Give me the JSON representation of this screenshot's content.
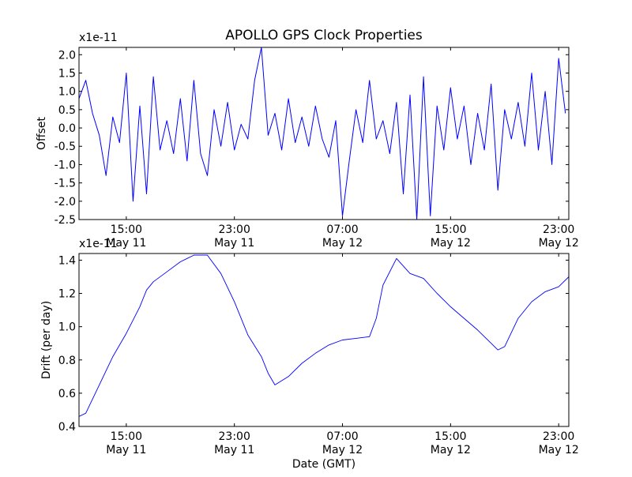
{
  "figure": {
    "title": "APOLLO GPS Clock Properties"
  },
  "chart_data": [
    {
      "type": "line",
      "ylabel": "Offset",
      "y_multiplier": "x1e-11",
      "ylim": [
        -2.5,
        2.2
      ],
      "yticks": [
        "2.0",
        "1.5",
        "1.0",
        "0.5",
        "0.0",
        "-0.5",
        "-1.0",
        "-1.5",
        "-2.0",
        "-2.5"
      ],
      "x_range": [
        "May 11 11:30",
        "May 12 23:45"
      ],
      "xticks": [
        {
          "time": "15:00",
          "date": "May 11"
        },
        {
          "time": "23:00",
          "date": "May 11"
        },
        {
          "time": "07:00",
          "date": "May 12"
        },
        {
          "time": "15:00",
          "date": "May 12"
        },
        {
          "time": "23:00",
          "date": "May 12"
        }
      ],
      "color": "#0000ff",
      "series": [
        {
          "x": [
            "May 11 11:30",
            "May 11 12:00",
            "May 11 12:30",
            "May 11 13:00",
            "May 11 13:30",
            "May 11 14:00",
            "May 11 14:30",
            "May 11 15:00",
            "May 11 15:30",
            "May 11 16:00",
            "May 11 16:30",
            "May 11 17:00",
            "May 11 17:30",
            "May 11 18:00",
            "May 11 18:30",
            "May 11 19:00",
            "May 11 19:30",
            "May 11 20:00",
            "May 11 20:30",
            "May 11 21:00",
            "May 11 21:30",
            "May 11 22:00",
            "May 11 22:30",
            "May 11 23:00",
            "May 11 23:30",
            "May 12 00:00",
            "May 12 00:30",
            "May 12 01:00",
            "May 12 01:30",
            "May 12 02:00",
            "May 12 02:30",
            "May 12 03:00",
            "May 12 03:30",
            "May 12 04:00",
            "May 12 04:30",
            "May 12 05:00",
            "May 12 05:30",
            "May 12 06:00",
            "May 12 06:30",
            "May 12 07:00",
            "May 12 07:30",
            "May 12 08:00",
            "May 12 08:30",
            "May 12 09:00",
            "May 12 09:30",
            "May 12 10:00",
            "May 12 10:30",
            "May 12 11:00",
            "May 12 11:30",
            "May 12 12:00",
            "May 12 12:30",
            "May 12 13:00",
            "May 12 13:30",
            "May 12 14:00",
            "May 12 14:30",
            "May 12 15:00",
            "May 12 15:30",
            "May 12 16:00",
            "May 12 16:30",
            "May 12 17:00",
            "May 12 17:30",
            "May 12 18:00",
            "May 12 18:30",
            "May 12 19:00",
            "May 12 19:30",
            "May 12 20:00",
            "May 12 20:30",
            "May 12 21:00",
            "May 12 21:30",
            "May 12 22:00",
            "May 12 22:30",
            "May 12 23:00",
            "May 12 23:30"
          ],
          "values": [
            0.8,
            1.3,
            0.4,
            -0.2,
            -1.3,
            0.3,
            -0.4,
            1.5,
            -2.0,
            0.6,
            -1.8,
            1.4,
            -0.6,
            0.2,
            -0.7,
            0.8,
            -0.9,
            1.3,
            -0.7,
            -1.3,
            0.5,
            -0.5,
            0.7,
            -0.6,
            0.1,
            -0.3,
            1.3,
            2.2,
            -0.2,
            0.4,
            -0.6,
            0.8,
            -0.4,
            0.3,
            -0.5,
            0.6,
            -0.3,
            -0.8,
            0.2,
            -2.4,
            -0.9,
            0.5,
            -0.4,
            1.3,
            -0.3,
            0.2,
            -0.7,
            0.7,
            -1.8,
            0.9,
            -2.5,
            1.4,
            -2.4,
            0.6,
            -0.6,
            1.1,
            -0.3,
            0.6,
            -1.0,
            0.4,
            -0.6,
            1.2,
            -1.7,
            0.5,
            -0.3,
            0.7,
            -0.5,
            1.5,
            -0.6,
            1.0,
            -1.0,
            1.9,
            0.4
          ]
        }
      ]
    },
    {
      "type": "line",
      "xlabel": "Date (GMT)",
      "ylabel": "Drift (per day)",
      "y_multiplier": "x1e-11",
      "ylim": [
        0.4,
        1.44
      ],
      "yticks": [
        "1.4",
        "1.2",
        "1.0",
        "0.8",
        "0.6",
        "0.4"
      ],
      "x_range": [
        "May 11 11:30",
        "May 12 23:45"
      ],
      "xticks": [
        {
          "time": "15:00",
          "date": "May 11"
        },
        {
          "time": "23:00",
          "date": "May 11"
        },
        {
          "time": "07:00",
          "date": "May 12"
        },
        {
          "time": "15:00",
          "date": "May 12"
        },
        {
          "time": "23:00",
          "date": "May 12"
        }
      ],
      "color": "#0000ff",
      "series": [
        {
          "x": [
            "May 11 11:30",
            "May 11 12:00",
            "May 11 13:00",
            "May 11 14:00",
            "May 11 15:00",
            "May 11 16:00",
            "May 11 16:30",
            "May 11 17:00",
            "May 11 18:00",
            "May 11 19:00",
            "May 11 19:30",
            "May 11 20:00",
            "May 11 21:00",
            "May 11 22:00",
            "May 11 23:00",
            "May 12 00:00",
            "May 12 01:00",
            "May 12 01:30",
            "May 12 02:00",
            "May 12 03:00",
            "May 12 04:00",
            "May 12 05:00",
            "May 12 06:00",
            "May 12 07:00",
            "May 12 08:00",
            "May 12 09:00",
            "May 12 09:30",
            "May 12 10:00",
            "May 12 11:00",
            "May 12 12:00",
            "May 12 13:00",
            "May 12 14:00",
            "May 12 15:00",
            "May 12 16:00",
            "May 12 17:00",
            "May 12 18:00",
            "May 12 18:30",
            "May 12 19:00",
            "May 12 20:00",
            "May 12 21:00",
            "May 12 22:00",
            "May 12 23:00",
            "May 12 23:45"
          ],
          "values": [
            0.46,
            0.48,
            0.65,
            0.82,
            0.96,
            1.12,
            1.22,
            1.27,
            1.33,
            1.39,
            1.41,
            1.43,
            1.43,
            1.32,
            1.15,
            0.95,
            0.82,
            0.72,
            0.65,
            0.7,
            0.78,
            0.84,
            0.89,
            0.92,
            0.93,
            0.94,
            1.05,
            1.25,
            1.41,
            1.32,
            1.29,
            1.2,
            1.12,
            1.05,
            0.98,
            0.9,
            0.86,
            0.88,
            1.05,
            1.15,
            1.21,
            1.24,
            1.3
          ]
        }
      ]
    }
  ]
}
